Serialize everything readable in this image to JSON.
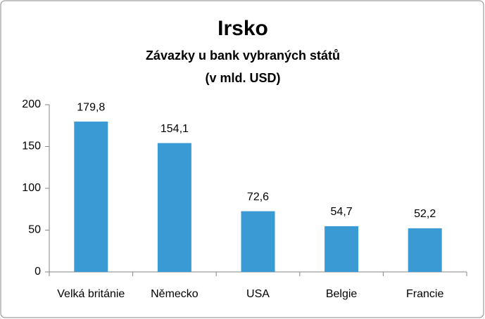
{
  "chart_data": {
    "type": "bar",
    "title": "Irsko",
    "subtitle": [
      "Závazky u bank vybraných států",
      "(v mld. USD)"
    ],
    "categories": [
      "Velká británie",
      "Německo",
      "USA",
      "Belgie",
      "Francie"
    ],
    "values": [
      179.8,
      154.1,
      72.6,
      54.7,
      52.2
    ],
    "value_labels": [
      "179,8",
      "154,1",
      "72,6",
      "54,7",
      "52,2"
    ],
    "color": "#3a9ad3",
    "ylim": [
      0,
      200
    ],
    "yticks": [
      0,
      50,
      100,
      150,
      200
    ],
    "grid": false
  }
}
